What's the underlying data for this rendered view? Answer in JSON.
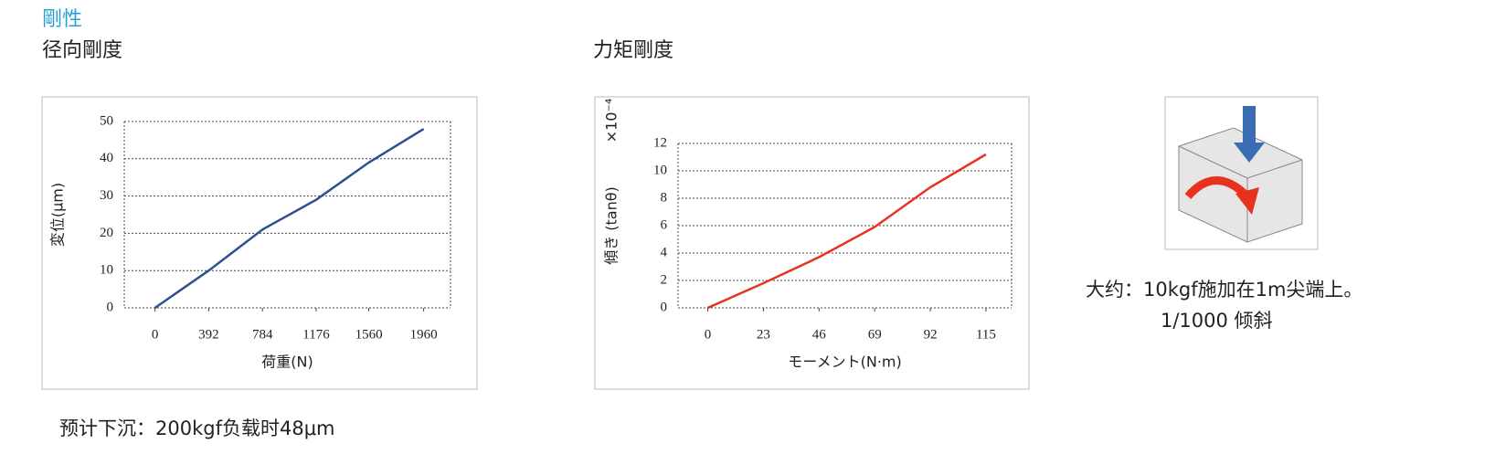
{
  "header": {
    "title": "剛性",
    "left_heading": "径向剛度",
    "right_heading": "力矩剛度"
  },
  "notes": {
    "radial": "预计下沉：200kgf负载时48μm",
    "moment_line1": "大约：10kgf施加在1m尖端上。",
    "moment_line2": "1/1000 倾斜"
  },
  "chart_data": [
    {
      "type": "line",
      "xlabel": "荷重(N)",
      "ylabel": "変位(μm)",
      "x": [
        0,
        392,
        784,
        1176,
        1560,
        1960
      ],
      "values": [
        0,
        10,
        21,
        29,
        39,
        48
      ],
      "color": "#2f4f8f",
      "xlim": [
        -224,
        2156
      ],
      "xticks": [
        0,
        392,
        784,
        1176,
        1560,
        1960
      ],
      "ylim": [
        0,
        50
      ],
      "yticks": [
        0,
        10,
        20,
        30,
        40,
        50
      ],
      "grid": true
    },
    {
      "type": "line",
      "xlabel": "モーメント(N·m)",
      "ylabel": "傾き (tanθ)",
      "yunit": "×10⁻⁴",
      "x": [
        0,
        23,
        46,
        69,
        92,
        115
      ],
      "values": [
        0,
        1.8,
        3.7,
        5.9,
        8.8,
        11.2
      ],
      "color": "#e8321e",
      "xlim": [
        -12.3,
        125.6
      ],
      "xticks": [
        0,
        23,
        46,
        69,
        92,
        115
      ],
      "ylim": [
        0,
        12
      ],
      "yticks": [
        0,
        2,
        4,
        6,
        8,
        10,
        12
      ],
      "grid": true
    }
  ]
}
